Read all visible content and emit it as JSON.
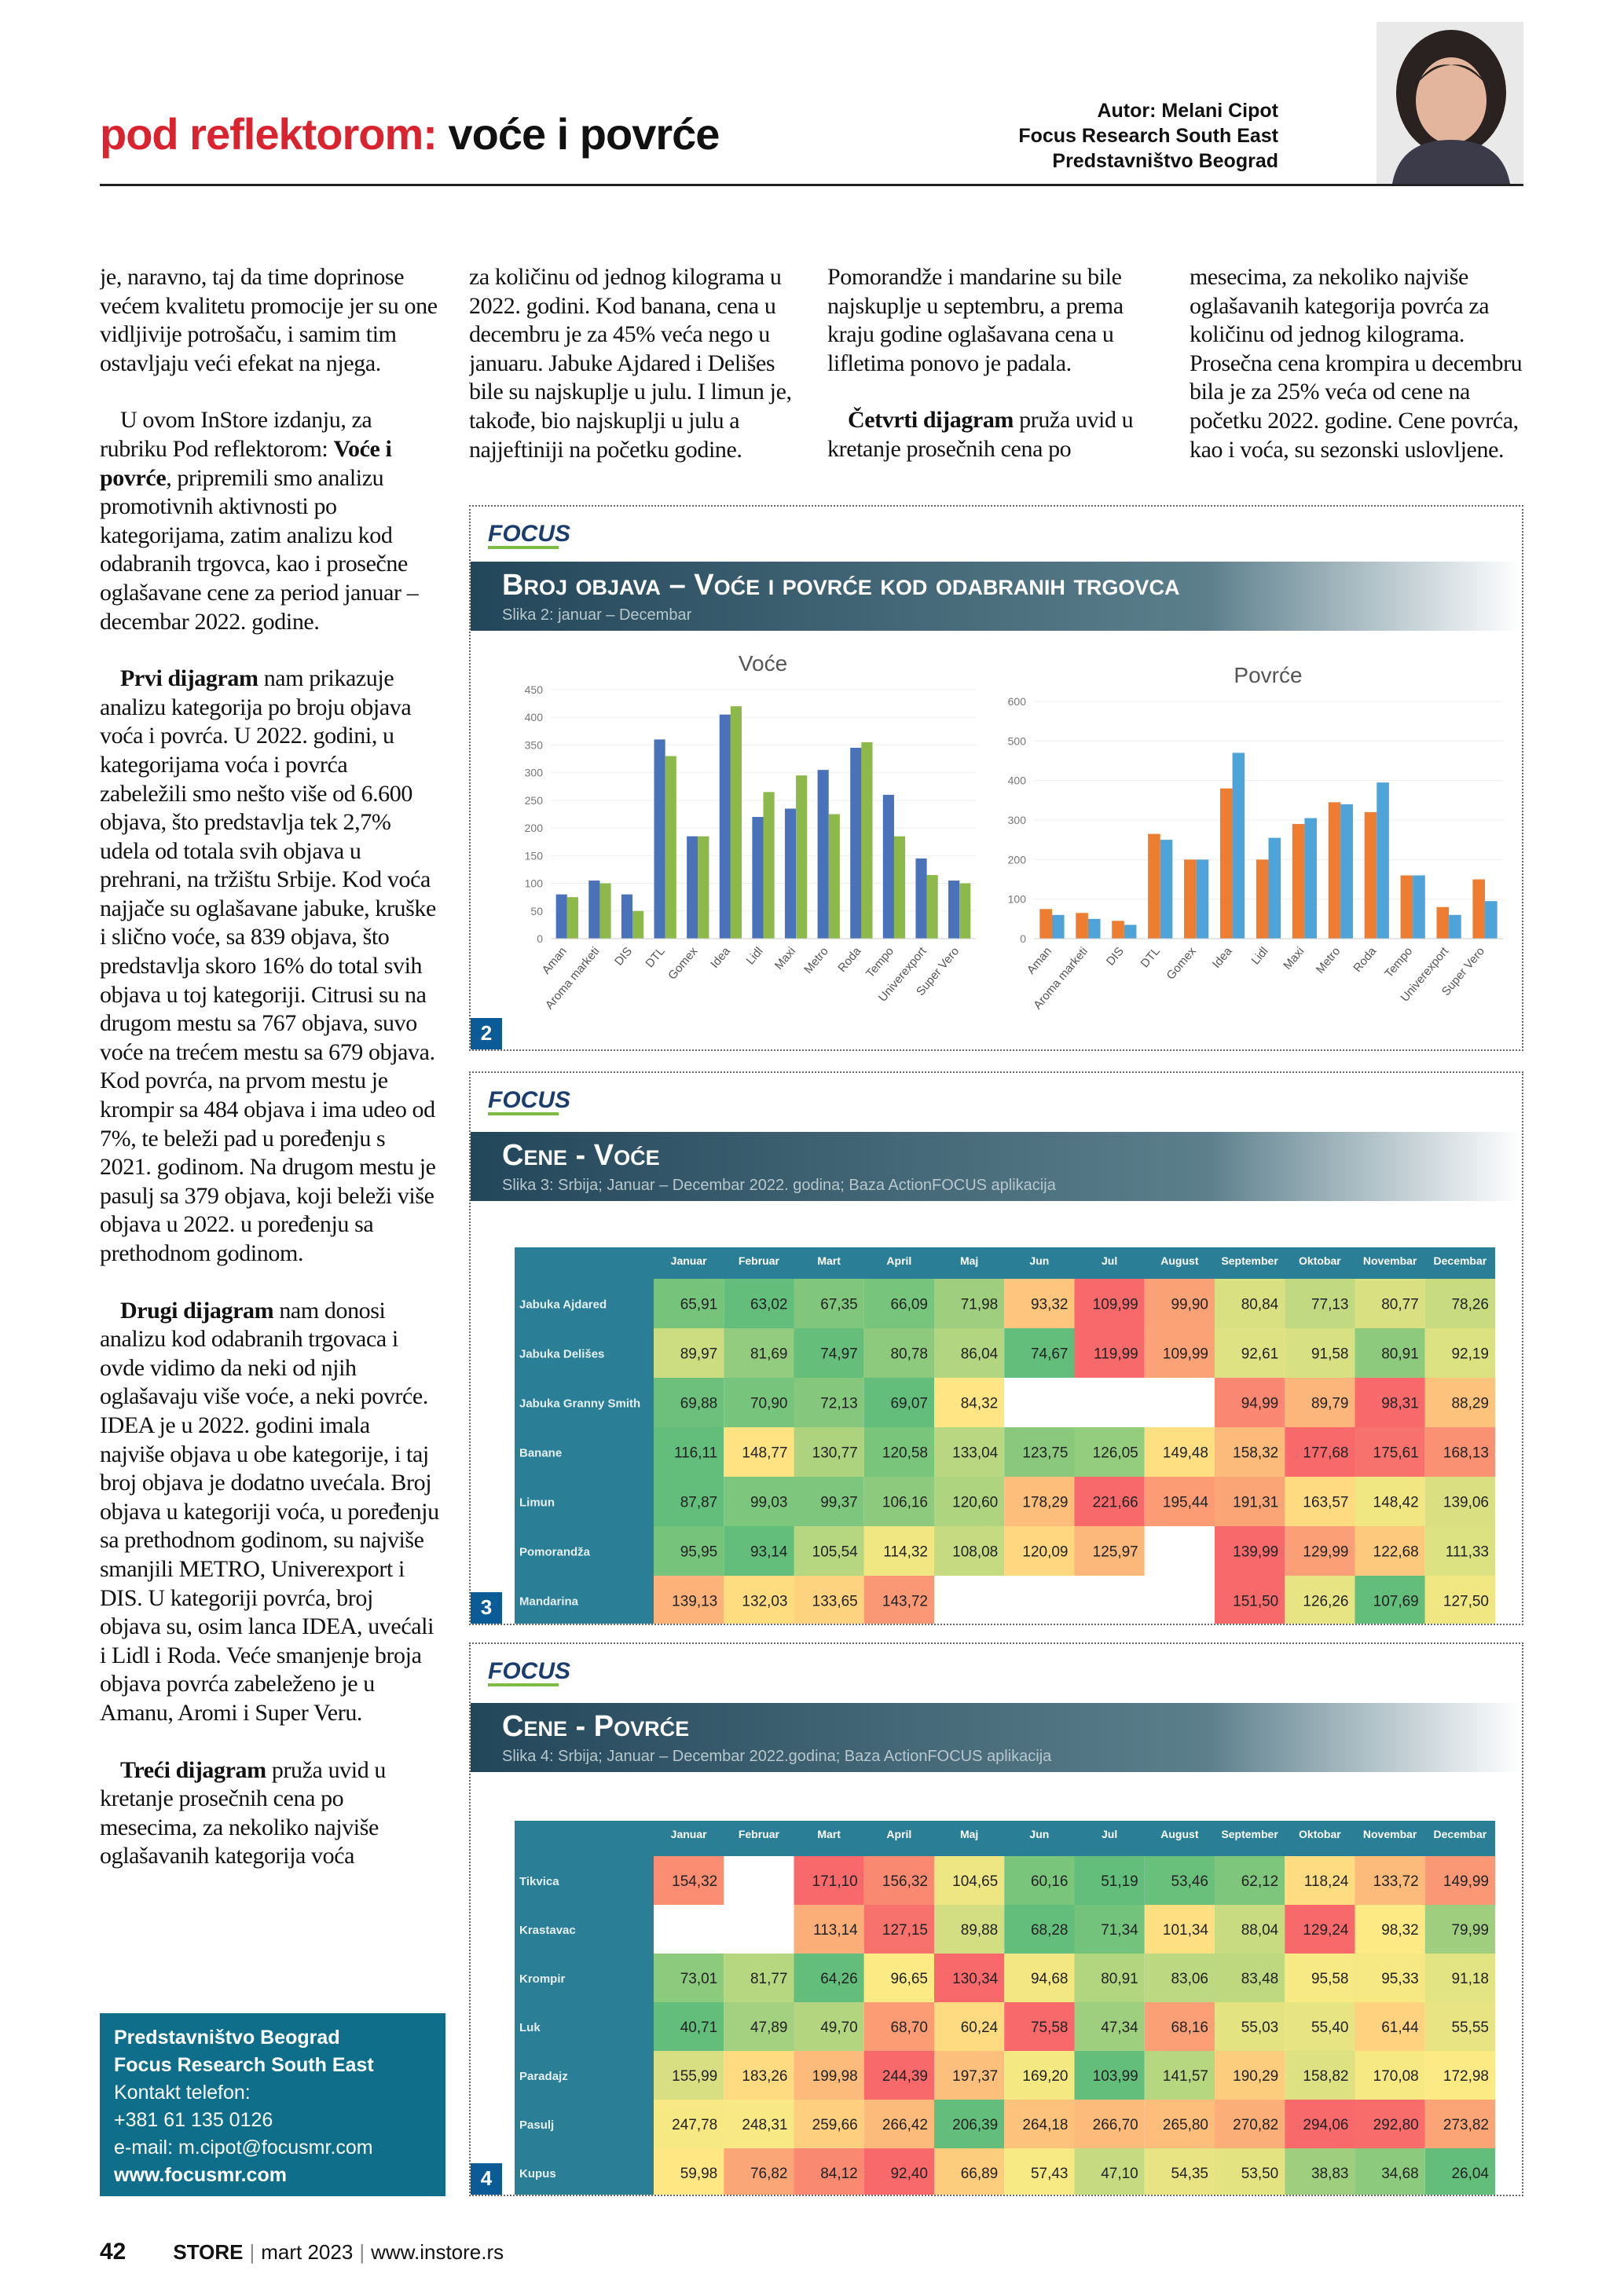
{
  "header": {
    "section": "pod reflektorom:",
    "title": "voće i povrće",
    "author": "Autor: Melani Cipot",
    "company": "Focus Research South East",
    "office": "Predstavništvo Beograd"
  },
  "columns": [
    {
      "paragraphs": [
        {
          "text": "je, naravno, taj da time doprinose većem kvalitetu promocije jer su one vidljivije potrošaču, i samim tim ostavljaju veći efekat na njega."
        },
        {
          "pre": "U ovom InStore izdanju, za rubriku Pod reflektorom:",
          "bold": "Voće i povrće",
          "post": ", pripremili smo analizu promotivnih aktivnosti po kategorijama, zatim analizu kod odabranih trgovca, kao i prosečne oglašavane cene za period januar – decembar 2022. godine."
        },
        {
          "bold": "Prvi dijagram",
          "post": " nam prikazuje analizu kategorija po broju objava voća i povrća. U 2022. godini, u kategorijama voća i povrća zabeležili smo nešto više od 6.600 objava, što predstavlja tek 2,7% udela od totala svih objava u prehrani, na tržištu Srbije. Kod voća najjače su oglašavane jabuke, kruške i slično voće, sa 839 objava, što predstavlja skoro 16% do total svih objava u toj kategoriji. Citrusi su na drugom mestu sa 767 objava, suvo voće na trećem mestu sa 679 objava. Kod povrća, na prvom mestu je krompir sa 484 objava i ima udeo od 7%, te beleži pad u poređenju s 2021. godinom. Na drugom mestu je pasulj sa 379 objava, koji beleži više objava u 2022. u poređenju sa prethodnom godinom."
        },
        {
          "bold": "Drugi dijagram",
          "post": " nam donosi analizu kod odabranih trgovaca i ovde vidimo da neki od njih oglašavaju više voće, a neki povrće. IDEA je u 2022. godini imala najviše objava u obe kategorije, i taj broj objava je dodatno uvećala. Broj objava u kategoriji voća, u poređenju sa prethodnom godinom, su najviše smanjili METRO, Univerexport i DIS. U kategoriji povrća, broj objava su, osim lanca IDEA, uvećali i Lidl i Roda. Veće smanjenje broja objava povrća zabeleženo je u Amanu, Aromi i Super Veru."
        },
        {
          "bold": "Treći dijagram",
          "post": " pruža uvid u kretanje prosečnih cena po mesecima, za nekoliko najviše oglašavanih kategorija voća"
        }
      ]
    },
    {
      "paragraphs": [
        {
          "text": "za količinu od jednog kilograma u 2022. godini. Kod banana, cena u decembru je za 45% veća nego u januaru. Jabuke Ajdared i Delišes bile su najskuplje u julu. I limun je, takođe, bio najskuplji u julu a najjeftiniji na početku godine."
        }
      ]
    },
    {
      "paragraphs": [
        {
          "text": "Pomorandže i mandarine su bile najskuplje u septembru, a prema kraju godine oglašavana cena u lifletima ponovo je padala."
        },
        {
          "bold": "Četvrti dijagram",
          "post": " pruža uvid u kretanje prosečnih cena po"
        }
      ]
    },
    {
      "paragraphs": [
        {
          "text": "mesecima, za nekoliko najviše oglašavanih kategorija povrća za količinu od jednog kilograma. Prosečna cena krompira u decembru bila je za 25% veća od cene na početku 2022. godine. Cene povrća, kao i voća, su sezonski uslovljene."
        }
      ]
    }
  ],
  "figures": [
    {
      "logo": "FOCUS",
      "title": "Broj objava – Voće i povrće kod odabranih trgovca",
      "subtitle": "Slika 2: januar – Decembar",
      "number": 2
    },
    {
      "logo": "FOCUS",
      "title": "Cene - Voće",
      "subtitle": "Slika 3: Srbija; Januar – Decembar 2022. godina; Baza ActionFOCUS aplikacija",
      "number": 3
    },
    {
      "logo": "FOCUS",
      "title": "Cene - Povrće",
      "subtitle": "Slika 4: Srbija; Januar – Decembar 2022.godina; Baza ActionFOCUS aplikacija",
      "number": 4
    }
  ],
  "chart_data": [
    {
      "type": "bar",
      "title": "Voće",
      "categories": [
        "Aman",
        "Aroma marketi",
        "DIS",
        "DTL",
        "Gomex",
        "Idea",
        "Lidl",
        "Maxi",
        "Metro",
        "Roda",
        "Tempo",
        "Univerexport",
        "Super Vero"
      ],
      "series": [
        {
          "color": "#4a72b8",
          "values": [
            80,
            105,
            80,
            360,
            185,
            405,
            220,
            235,
            305,
            345,
            260,
            145,
            105
          ]
        },
        {
          "color": "#8db94a",
          "values": [
            75,
            100,
            50,
            330,
            185,
            420,
            265,
            295,
            225,
            355,
            185,
            115,
            100
          ]
        }
      ],
      "ylim": [
        0,
        450
      ],
      "yticks": [
        0,
        50,
        100,
        150,
        200,
        250,
        300,
        350,
        400,
        450
      ]
    },
    {
      "type": "bar",
      "title": "Povrće",
      "categories": [
        "Aman",
        "Aroma marketi",
        "DIS",
        "DTL",
        "Gomex",
        "Idea",
        "Lidl",
        "Maxi",
        "Metro",
        "Roda",
        "Tempo",
        "Univerexport",
        "Super Vero"
      ],
      "series": [
        {
          "color": "#ed7d31",
          "values": [
            75,
            65,
            45,
            265,
            200,
            380,
            200,
            290,
            345,
            320,
            160,
            80,
            150
          ]
        },
        {
          "color": "#4ea4d8",
          "values": [
            60,
            50,
            35,
            250,
            200,
            470,
            255,
            305,
            340,
            395,
            160,
            60,
            95
          ]
        }
      ],
      "ylim": [
        0,
        600
      ],
      "yticks": [
        0,
        100,
        200,
        300,
        400,
        500,
        600
      ]
    }
  ],
  "tables": [
    {
      "columns": [
        "Januar",
        "Februar",
        "Mart",
        "April",
        "Maj",
        "Jun",
        "Jul",
        "August",
        "September",
        "Oktobar",
        "Novembar",
        "Decembar"
      ],
      "rows": [
        {
          "label": "Jabuka Ajdared",
          "cells": [
            "65,91",
            "63,02",
            "67,35",
            "66,09",
            "71,98",
            "93,32",
            "109,99",
            "99,90",
            "80,84",
            "77,13",
            "80,77",
            "78,26"
          ]
        },
        {
          "label": "Jabuka Delišes",
          "cells": [
            "89,97",
            "81,69",
            "74,97",
            "80,78",
            "86,04",
            "74,67",
            "119,99",
            "109,99",
            "92,61",
            "91,58",
            "80,91",
            "92,19"
          ]
        },
        {
          "label": "Jabuka Granny Smith",
          "cells": [
            "69,88",
            "70,90",
            "72,13",
            "69,07",
            "84,32",
            null,
            null,
            null,
            "94,99",
            "89,79",
            "98,31",
            "88,29"
          ]
        },
        {
          "label": "Banane",
          "cells": [
            "116,11",
            "148,77",
            "130,77",
            "120,58",
            "133,04",
            "123,75",
            "126,05",
            "149,48",
            "158,32",
            "177,68",
            "175,61",
            "168,13"
          ]
        },
        {
          "label": "Limun",
          "cells": [
            "87,87",
            "99,03",
            "99,37",
            "106,16",
            "120,60",
            "178,29",
            "221,66",
            "195,44",
            "191,31",
            "163,57",
            "148,42",
            "139,06"
          ]
        },
        {
          "label": "Pomorandža",
          "cells": [
            "95,95",
            "93,14",
            "105,54",
            "114,32",
            "108,08",
            "120,09",
            "125,97",
            null,
            "139,99",
            "129,99",
            "122,68",
            "111,33"
          ]
        },
        {
          "label": "Mandarina",
          "cells": [
            "139,13",
            "132,03",
            "133,65",
            "143,72",
            null,
            null,
            null,
            null,
            "151,50",
            "126,26",
            "107,69",
            "127,50"
          ]
        }
      ]
    },
    {
      "columns": [
        "Januar",
        "Februar",
        "Mart",
        "April",
        "Maj",
        "Jun",
        "Jul",
        "August",
        "September",
        "Oktobar",
        "Novembar",
        "Decembar"
      ],
      "rows": [
        {
          "label": "Tikvica",
          "cells": [
            "154,32",
            null,
            "171,10",
            "156,32",
            "104,65",
            "60,16",
            "51,19",
            "53,46",
            "62,12",
            "118,24",
            "133,72",
            "149,99"
          ]
        },
        {
          "label": "Krastavac",
          "cells": [
            null,
            null,
            "113,14",
            "127,15",
            "89,88",
            "68,28",
            "71,34",
            "101,34",
            "88,04",
            "129,24",
            "98,32",
            "79,99"
          ]
        },
        {
          "label": "Krompir",
          "cells": [
            "73,01",
            "81,77",
            "64,26",
            "96,65",
            "130,34",
            "94,68",
            "80,91",
            "83,06",
            "83,48",
            "95,58",
            "95,33",
            "91,18"
          ]
        },
        {
          "label": "Luk",
          "cells": [
            "40,71",
            "47,89",
            "49,70",
            "68,70",
            "60,24",
            "75,58",
            "47,34",
            "68,16",
            "55,03",
            "55,40",
            "61,44",
            "55,55"
          ]
        },
        {
          "label": "Paradajz",
          "cells": [
            "155,99",
            "183,26",
            "199,98",
            "244,39",
            "197,37",
            "169,20",
            "103,99",
            "141,57",
            "190,29",
            "158,82",
            "170,08",
            "172,98"
          ]
        },
        {
          "label": "Pasulj",
          "cells": [
            "247,78",
            "248,31",
            "259,66",
            "266,42",
            "206,39",
            "264,18",
            "266,70",
            "265,80",
            "270,82",
            "294,06",
            "292,80",
            "273,82"
          ]
        },
        {
          "label": "Kupus",
          "cells": [
            "59,98",
            "76,82",
            "84,12",
            "92,40",
            "66,89",
            "57,43",
            "47,10",
            "54,35",
            "53,50",
            "38,83",
            "34,68",
            "26,04"
          ]
        }
      ]
    }
  ],
  "contact": {
    "office": "Predstavništvo Beograd",
    "company": "Focus Research South East",
    "phone_label": "Kontakt telefon:",
    "phone": "+381 61 135 0126",
    "email": "e-mail: m.cipot@focusmr.com",
    "web": "www.focusmr.com"
  },
  "footer": {
    "page": 42,
    "magazine": "STORE",
    "issue": "mart 2023",
    "website": "www.instore.rs"
  }
}
